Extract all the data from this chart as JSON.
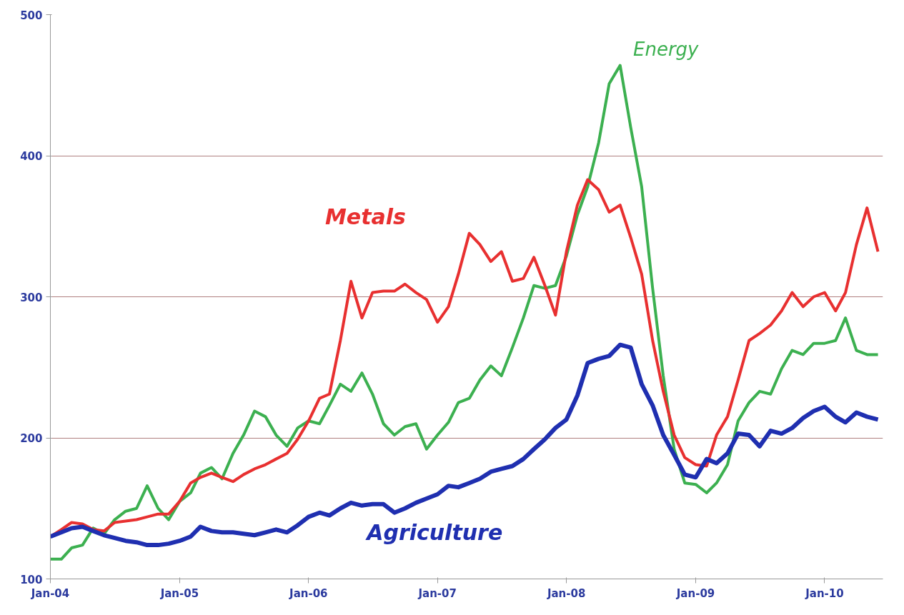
{
  "chart_data": {
    "type": "line",
    "x": [
      "2004-01",
      "2004-02",
      "2004-03",
      "2004-04",
      "2004-05",
      "2004-06",
      "2004-07",
      "2004-08",
      "2004-09",
      "2004-10",
      "2004-11",
      "2004-12",
      "2005-01",
      "2005-02",
      "2005-03",
      "2005-04",
      "2005-05",
      "2005-06",
      "2005-07",
      "2005-08",
      "2005-09",
      "2005-10",
      "2005-11",
      "2005-12",
      "2006-01",
      "2006-02",
      "2006-03",
      "2006-04",
      "2006-05",
      "2006-06",
      "2006-07",
      "2006-08",
      "2006-09",
      "2006-10",
      "2006-11",
      "2006-12",
      "2007-01",
      "2007-02",
      "2007-03",
      "2007-04",
      "2007-05",
      "2007-06",
      "2007-07",
      "2007-08",
      "2007-09",
      "2007-10",
      "2007-11",
      "2007-12",
      "2008-01",
      "2008-02",
      "2008-03",
      "2008-04",
      "2008-05",
      "2008-06",
      "2008-07",
      "2008-08",
      "2008-09",
      "2008-10",
      "2008-11",
      "2008-12",
      "2009-01",
      "2009-02",
      "2009-03",
      "2009-04",
      "2009-05",
      "2009-06",
      "2009-07",
      "2009-08",
      "2009-09",
      "2009-10",
      "2009-11",
      "2009-12",
      "2010-01",
      "2010-02",
      "2010-03",
      "2010-04",
      "2010-05",
      "2010-06"
    ],
    "series": [
      {
        "name": "Energy",
        "color": "#3cb050",
        "values": [
          114,
          114,
          122,
          124,
          136,
          132,
          142,
          148,
          150,
          166,
          150,
          142,
          155,
          161,
          175,
          179,
          171,
          189,
          202,
          219,
          215,
          202,
          194,
          207,
          212,
          210,
          223,
          238,
          233,
          246,
          231,
          210,
          202,
          208,
          210,
          192,
          202,
          211,
          225,
          228,
          241,
          251,
          244,
          264,
          285,
          308,
          306,
          308,
          329,
          358,
          378,
          409,
          451,
          464,
          420,
          378,
          306,
          244,
          192,
          168,
          167,
          161,
          168,
          181,
          212,
          225,
          233,
          231,
          249,
          262,
          259,
          267,
          267,
          269,
          285,
          262,
          259,
          259
        ]
      },
      {
        "name": "Metals",
        "color": "#e83030",
        "values": [
          130,
          135,
          140,
          139,
          135,
          134,
          140,
          141,
          142,
          144,
          146,
          146,
          155,
          168,
          172,
          175,
          172,
          169,
          174,
          178,
          181,
          185,
          189,
          199,
          212,
          228,
          231,
          269,
          311,
          285,
          303,
          304,
          304,
          309,
          303,
          298,
          282,
          293,
          316,
          345,
          337,
          325,
          332,
          311,
          313,
          328,
          308,
          287,
          332,
          365,
          383,
          376,
          360,
          365,
          342,
          316,
          269,
          233,
          202,
          186,
          181,
          180,
          202,
          215,
          241,
          269,
          274,
          280,
          290,
          303,
          293,
          300,
          303,
          290,
          303,
          337,
          363,
          332
        ]
      },
      {
        "name": "Agriculture",
        "color": "#1f2fb0",
        "values": [
          130,
          133,
          136,
          137,
          134,
          131,
          129,
          127,
          126,
          124,
          124,
          125,
          127,
          130,
          137,
          134,
          133,
          133,
          132,
          131,
          133,
          135,
          133,
          138,
          144,
          147,
          145,
          150,
          154,
          152,
          153,
          153,
          147,
          150,
          154,
          157,
          160,
          166,
          165,
          168,
          171,
          176,
          178,
          180,
          185,
          192,
          199,
          207,
          213,
          230,
          253,
          256,
          258,
          266,
          264,
          238,
          223,
          202,
          188,
          174,
          172,
          185,
          182,
          189,
          203,
          202,
          194,
          205,
          203,
          207,
          214,
          219,
          222,
          215,
          211,
          218,
          215,
          213
        ]
      }
    ],
    "xlim": [
      "2004-01",
      "2010-06-15"
    ],
    "xticks": [
      {
        "value": "2004-01",
        "label": "Jan-04"
      },
      {
        "value": "2005-01",
        "label": "Jan-05"
      },
      {
        "value": "2006-01",
        "label": "Jan-06"
      },
      {
        "value": "2007-01",
        "label": "Jan-07"
      },
      {
        "value": "2008-01",
        "label": "Jan-08"
      },
      {
        "value": "2009-01",
        "label": "Jan-09"
      },
      {
        "value": "2010-01",
        "label": "Jan-10"
      }
    ],
    "ylim": [
      100,
      500
    ],
    "yticks": [
      100,
      200,
      300,
      400,
      500
    ],
    "grid": "y",
    "line_style": "solid",
    "marker": "none"
  }
}
